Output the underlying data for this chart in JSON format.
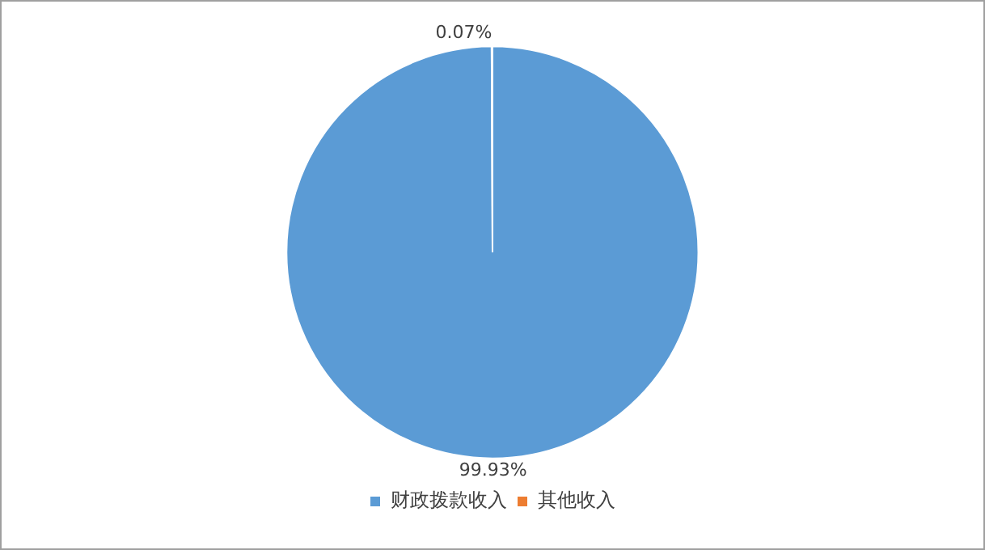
{
  "chart_data": {
    "type": "pie",
    "categories": [
      "财政拨款收入",
      "其他收入"
    ],
    "values": [
      99.93,
      0.07
    ],
    "colors": [
      "#5b9bd5",
      "#ed7d31"
    ],
    "value_labels": [
      "99.93%",
      "0.07%"
    ],
    "legend": "bottom"
  }
}
